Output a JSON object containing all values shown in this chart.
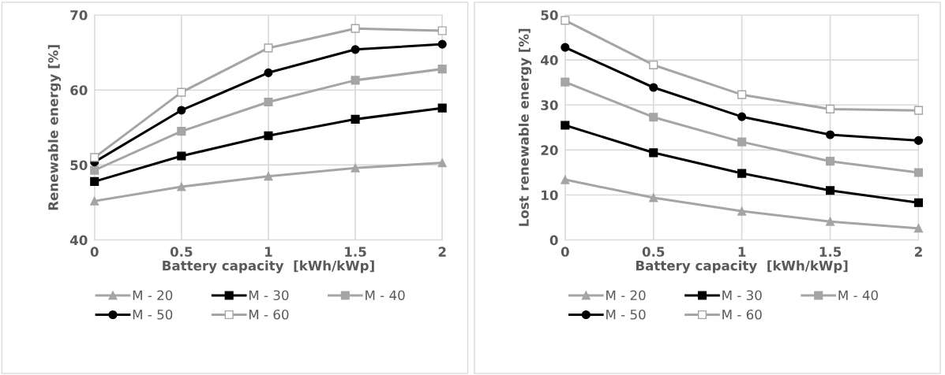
{
  "chart_data": [
    {
      "type": "line",
      "xlabel": "Battery capacity  [kWh/kWp]",
      "ylabel": "Renewable energy [%]",
      "categories": [
        "0",
        "0.5",
        "1",
        "1.5",
        "2"
      ],
      "ylim": [
        40,
        70
      ],
      "yticks": [
        40,
        50,
        60,
        70
      ],
      "grid": true,
      "legend": "bottom",
      "series": [
        {
          "name": "M - 20",
          "color": "#a5a5a5",
          "marker": "triangle",
          "values": [
            45.2,
            47.1,
            48.5,
            49.6,
            50.3
          ]
        },
        {
          "name": "M - 30",
          "color": "#000000",
          "marker": "square",
          "values": [
            47.8,
            51.2,
            53.9,
            56.1,
            57.6
          ]
        },
        {
          "name": "M - 40",
          "color": "#a5a5a5",
          "marker": "square",
          "values": [
            49.3,
            54.5,
            58.4,
            61.3,
            62.8
          ]
        },
        {
          "name": "M - 50",
          "color": "#000000",
          "marker": "circle",
          "values": [
            50.4,
            57.3,
            62.3,
            65.4,
            66.1
          ]
        },
        {
          "name": "M - 60",
          "color": "#a5a5a5",
          "marker": "square",
          "values": [
            51.0,
            59.7,
            65.6,
            68.2,
            67.9
          ]
        }
      ]
    },
    {
      "type": "line",
      "xlabel": "Battery capacity  [kWh/kWp]",
      "ylabel": "Lost renewable energy [%]",
      "categories": [
        "0",
        "0.5",
        "1",
        "1.5",
        "2"
      ],
      "ylim": [
        0,
        50
      ],
      "yticks": [
        0,
        10,
        20,
        30,
        40,
        50
      ],
      "grid": true,
      "legend": "bottom",
      "series": [
        {
          "name": "M - 20",
          "color": "#a5a5a5",
          "marker": "triangle",
          "values": [
            13.4,
            9.4,
            6.4,
            4.1,
            2.6
          ]
        },
        {
          "name": "M - 30",
          "color": "#000000",
          "marker": "square",
          "values": [
            25.5,
            19.4,
            14.8,
            11.0,
            8.3
          ]
        },
        {
          "name": "M - 40",
          "color": "#a5a5a5",
          "marker": "square",
          "values": [
            35.1,
            27.3,
            21.8,
            17.5,
            15.0
          ]
        },
        {
          "name": "M - 50",
          "color": "#000000",
          "marker": "circle",
          "values": [
            42.8,
            33.9,
            27.4,
            23.4,
            22.1
          ]
        },
        {
          "name": "M - 60",
          "color": "#a5a5a5",
          "marker": "square",
          "values": [
            48.8,
            38.9,
            32.3,
            29.1,
            28.8
          ]
        }
      ]
    }
  ]
}
